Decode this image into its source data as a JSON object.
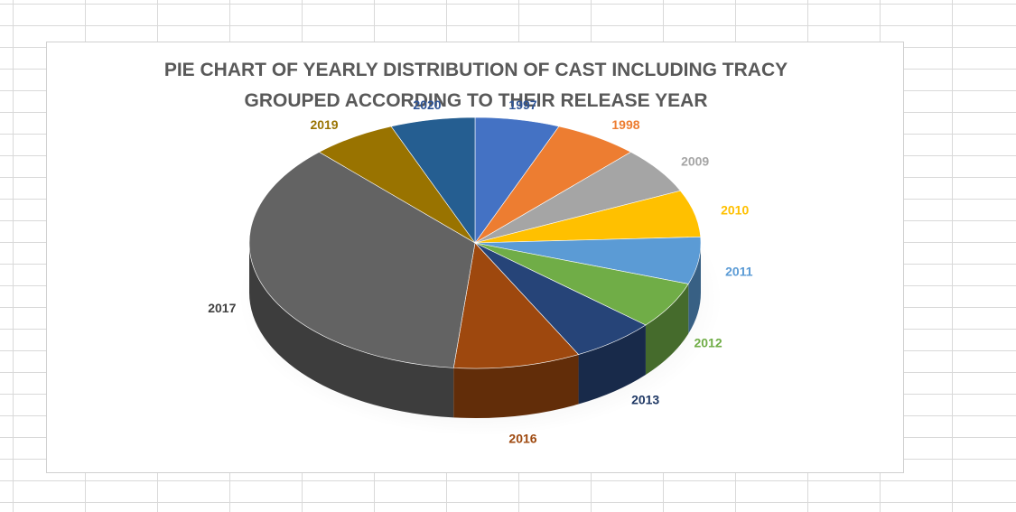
{
  "chart_data": {
    "type": "pie",
    "title_lines": [
      "PIE CHART OF YEARLY DISTRIBUTION OF CAST INCLUDING TRACY",
      "GROUPED ACCORDING TO THEIR RELEASE YEAR"
    ],
    "three_d": true,
    "slices": [
      {
        "label": "1997",
        "value": 1,
        "color": "#4472C4",
        "label_color": "#2F5597"
      },
      {
        "label": "1998",
        "value": 1,
        "color": "#ED7D31",
        "label_color": "#ED7D31"
      },
      {
        "label": "2009",
        "value": 1,
        "color": "#A5A5A5",
        "label_color": "#A5A5A5"
      },
      {
        "label": "2010",
        "value": 1,
        "color": "#FFC000",
        "label_color": "#FFC000"
      },
      {
        "label": "2011",
        "value": 1,
        "color": "#5B9BD5",
        "label_color": "#5B9BD5"
      },
      {
        "label": "2012",
        "value": 1,
        "color": "#70AD47",
        "label_color": "#70AD47"
      },
      {
        "label": "2013",
        "value": 1,
        "color": "#264478",
        "label_color": "#1F3864"
      },
      {
        "label": "2016",
        "value": 1.5,
        "color": "#9E480E",
        "label_color": "#9E480E"
      },
      {
        "label": "2017",
        "value": 6,
        "color": "#636363",
        "label_color": "#404040"
      },
      {
        "label": "2019",
        "value": 1,
        "color": "#997300",
        "label_color": "#997300"
      },
      {
        "label": "2020",
        "value": 1,
        "color": "#255E91",
        "label_color": "#2F5597"
      }
    ]
  }
}
